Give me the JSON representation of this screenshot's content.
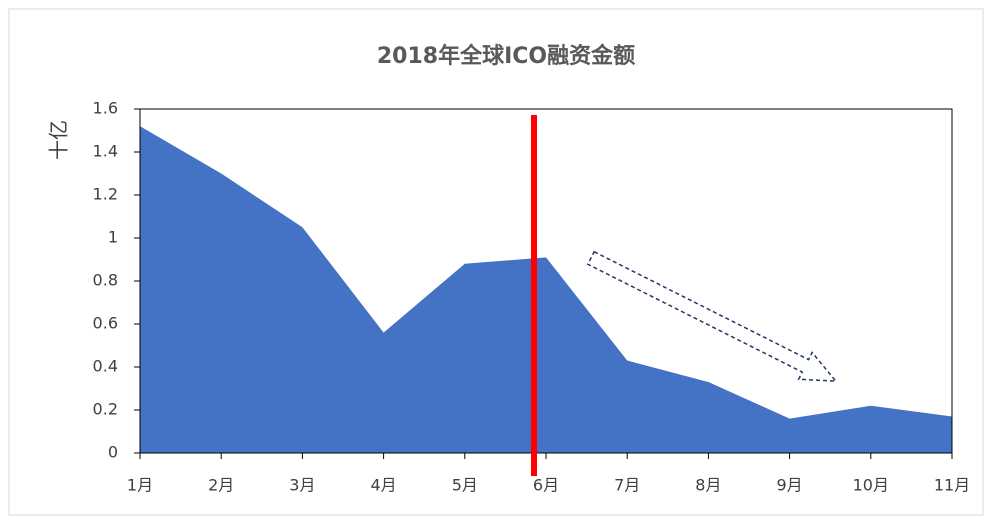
{
  "chart_data": {
    "type": "area",
    "title": "2018年全球ICO融资金额",
    "y_label": "十亿",
    "categories": [
      "1月",
      "2月",
      "3月",
      "4月",
      "5月",
      "6月",
      "7月",
      "8月",
      "9月",
      "10月",
      "11月"
    ],
    "values": [
      1.52,
      1.3,
      1.05,
      0.56,
      0.88,
      0.91,
      0.43,
      0.33,
      0.16,
      0.22,
      0.17
    ],
    "color": "#4472c4",
    "ylim": [
      0,
      1.6
    ],
    "yticks": [
      0,
      0.2,
      0.4,
      0.6,
      0.8,
      1,
      1.2,
      1.4,
      1.6
    ],
    "grid": false
  }
}
